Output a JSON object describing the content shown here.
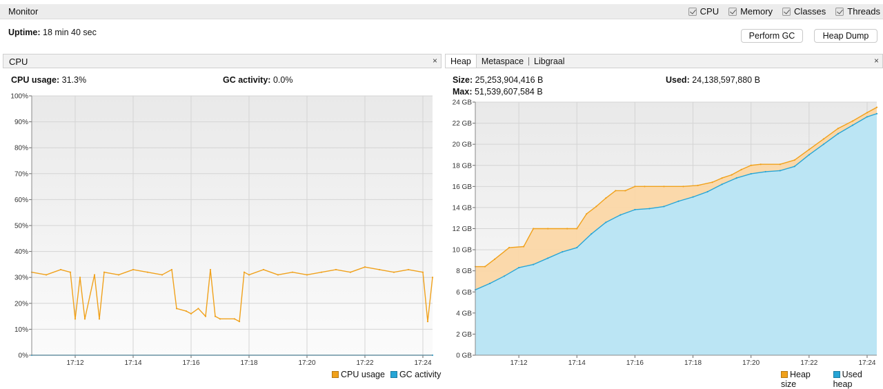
{
  "monitor": {
    "title": "Monitor",
    "checks": [
      {
        "label": "CPU",
        "checked": true
      },
      {
        "label": "Memory",
        "checked": true
      },
      {
        "label": "Classes",
        "checked": true
      },
      {
        "label": "Threads",
        "checked": true
      }
    ],
    "uptime_label": "Uptime:",
    "uptime_value": "18 min 40 sec",
    "perform_gc_label": "Perform GC",
    "heap_dump_label": "Heap Dump"
  },
  "cpu_panel": {
    "title": "CPU",
    "close": "×",
    "cpu_usage_label": "CPU usage:",
    "cpu_usage_value": "31.3%",
    "gc_activity_label": "GC activity:",
    "gc_activity_value": "0.0%",
    "legend": [
      {
        "label": "CPU usage",
        "color": "#f0a11b"
      },
      {
        "label": "GC activity",
        "color": "#27a5d6"
      }
    ]
  },
  "memory_panel": {
    "tabs": [
      "Heap",
      "Metaspace",
      "Libgraal"
    ],
    "close": "×",
    "size_label": "Size:",
    "size_value": "25,253,904,416 B",
    "max_label": "Max:",
    "max_value": "51,539,607,584 B",
    "used_label": "Used:",
    "used_value": "24,138,597,880 B",
    "legend": [
      {
        "label": "Heap size",
        "color": "#f0a11b"
      },
      {
        "label": "Used heap",
        "color": "#27a5d6"
      }
    ]
  },
  "chart_data": [
    {
      "type": "line",
      "title": "CPU",
      "x_ticks": [
        "17:12",
        "17:14",
        "17:16",
        "17:18",
        "17:20",
        "17:22",
        "17:24"
      ],
      "y_ticks": [
        "0%",
        "10%",
        "20%",
        "30%",
        "40%",
        "50%",
        "60%",
        "70%",
        "80%",
        "90%",
        "100%"
      ],
      "ylim": [
        0,
        100
      ],
      "grid": true,
      "legend_position": "bottom-right",
      "series": [
        {
          "name": "CPU usage",
          "color": "#f0a11b",
          "x": [
            "17:10:30",
            "17:11:00",
            "17:11:30",
            "17:11:50",
            "17:12:00",
            "17:12:10",
            "17:12:20",
            "17:12:40",
            "17:12:50",
            "17:13:00",
            "17:13:30",
            "17:14:00",
            "17:14:30",
            "17:15:00",
            "17:15:20",
            "17:15:30",
            "17:15:50",
            "17:16:00",
            "17:16:15",
            "17:16:30",
            "17:16:40",
            "17:16:50",
            "17:17:00",
            "17:17:30",
            "17:17:40",
            "17:17:50",
            "17:18:00",
            "17:18:30",
            "17:19:00",
            "17:19:30",
            "17:20:00",
            "17:20:30",
            "17:21:00",
            "17:21:30",
            "17:22:00",
            "17:22:30",
            "17:23:00",
            "17:23:30",
            "17:24:00",
            "17:24:10",
            "17:24:20"
          ],
          "values": [
            32,
            31,
            33,
            32,
            14,
            30,
            14,
            31,
            14,
            32,
            31,
            33,
            32,
            31,
            33,
            18,
            17,
            16,
            18,
            15,
            33,
            15,
            14,
            14,
            13,
            32,
            31,
            33,
            31,
            32,
            31,
            32,
            33,
            32,
            34,
            33,
            32,
            33,
            32,
            13,
            30
          ]
        },
        {
          "name": "GC activity",
          "color": "#27a5d6",
          "x": [
            "17:10:30",
            "17:24:20"
          ],
          "values": [
            0,
            0
          ]
        }
      ]
    },
    {
      "type": "area",
      "title": "Heap",
      "x_ticks": [
        "17:12",
        "17:14",
        "17:16",
        "17:18",
        "17:20",
        "17:22",
        "17:24"
      ],
      "y_ticks": [
        "0 GB",
        "2 GB",
        "4 GB",
        "6 GB",
        "8 GB",
        "10 GB",
        "12 GB",
        "14 GB",
        "16 GB",
        "18 GB",
        "20 GB",
        "22 GB",
        "24 GB"
      ],
      "ylim": [
        0,
        24
      ],
      "grid": true,
      "legend_position": "bottom-right",
      "series": [
        {
          "name": "Heap size",
          "color": "#f0a11b",
          "x": [
            "17:10:30",
            "17:10:50",
            "17:11:10",
            "17:11:40",
            "17:12:10",
            "17:12:30",
            "17:13:00",
            "17:13:40",
            "17:14:00",
            "17:14:20",
            "17:14:40",
            "17:15:00",
            "17:15:20",
            "17:15:40",
            "17:16:00",
            "17:16:20",
            "17:17:00",
            "17:17:40",
            "17:18:10",
            "17:18:40",
            "17:19:00",
            "17:19:20",
            "17:19:40",
            "17:20:00",
            "17:20:20",
            "17:21:00",
            "17:21:30",
            "17:22:00",
            "17:22:30",
            "17:23:00",
            "17:23:30",
            "17:24:00",
            "17:24:20"
          ],
          "values": [
            8.4,
            8.4,
            9.1,
            10.2,
            10.3,
            12.0,
            12.0,
            12.0,
            12.0,
            13.4,
            14.1,
            14.9,
            15.6,
            15.6,
            16.0,
            16.0,
            16.0,
            16.0,
            16.1,
            16.4,
            16.8,
            17.1,
            17.6,
            18.0,
            18.1,
            18.1,
            18.5,
            19.5,
            20.5,
            21.5,
            22.2,
            23.0,
            23.5
          ]
        },
        {
          "name": "Used heap",
          "color": "#27a5d6",
          "x": [
            "17:10:30",
            "17:11:00",
            "17:11:30",
            "17:12:00",
            "17:12:30",
            "17:13:00",
            "17:13:30",
            "17:14:00",
            "17:14:30",
            "17:15:00",
            "17:15:30",
            "17:16:00",
            "17:16:30",
            "17:17:00",
            "17:17:30",
            "17:18:00",
            "17:18:30",
            "17:19:00",
            "17:19:30",
            "17:20:00",
            "17:20:30",
            "17:21:00",
            "17:21:30",
            "17:22:00",
            "17:22:30",
            "17:23:00",
            "17:23:30",
            "17:24:00",
            "17:24:20"
          ],
          "values": [
            6.2,
            6.8,
            7.5,
            8.3,
            8.6,
            9.2,
            9.8,
            10.2,
            11.5,
            12.6,
            13.3,
            13.8,
            13.9,
            14.1,
            14.6,
            15.0,
            15.5,
            16.2,
            16.8,
            17.2,
            17.4,
            17.5,
            17.9,
            19.0,
            20.0,
            21.0,
            21.8,
            22.6,
            22.9
          ]
        }
      ]
    }
  ]
}
